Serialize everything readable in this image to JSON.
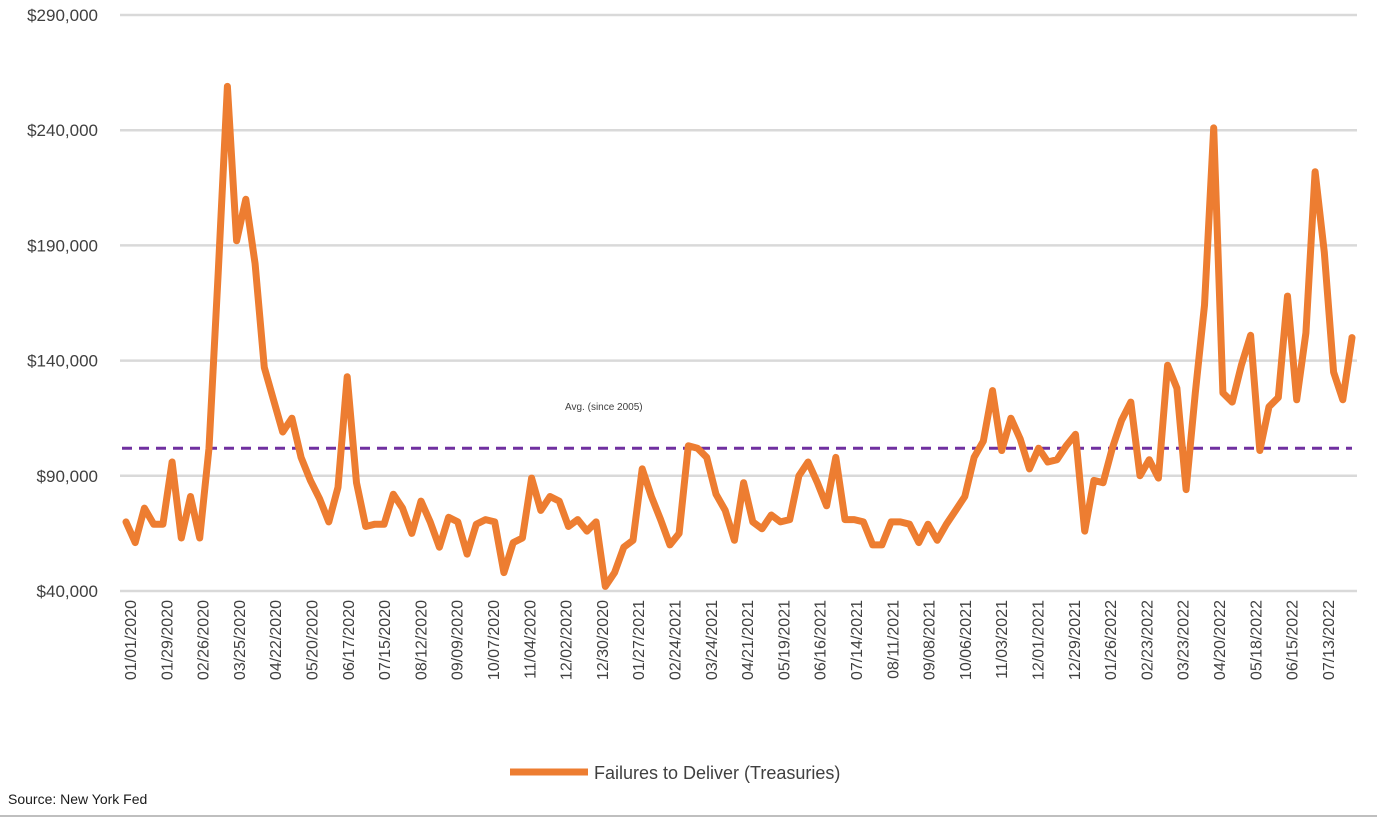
{
  "chart_data": {
    "type": "line",
    "title": "",
    "xlabel": "",
    "ylabel": "",
    "ylim": [
      40000,
      290000
    ],
    "yticks": [
      40000,
      90000,
      140000,
      190000,
      240000,
      290000
    ],
    "ytick_labels": [
      "$40,000",
      "$90,000",
      "$140,000",
      "$190,000",
      "$240,000",
      "$290,000"
    ],
    "grid": "horizontal",
    "legend_position": "bottom",
    "xtick_labels": [
      "01/01/2020",
      "01/29/2020",
      "02/26/2020",
      "03/25/2020",
      "04/22/2020",
      "05/20/2020",
      "06/17/2020",
      "07/15/2020",
      "08/12/2020",
      "09/09/2020",
      "10/07/2020",
      "11/04/2020",
      "12/02/2020",
      "12/30/2020",
      "01/27/2021",
      "02/24/2021",
      "03/24/2021",
      "04/21/2021",
      "05/19/2021",
      "06/16/2021",
      "07/14/2021",
      "08/11/2021",
      "09/08/2021",
      "10/06/2021",
      "11/03/2021",
      "12/01/2021",
      "12/29/2021",
      "01/26/2022",
      "02/23/2022",
      "03/23/2022",
      "04/20/2022",
      "05/18/2022",
      "06/15/2022",
      "07/13/2022"
    ],
    "series": [
      {
        "name": "Failures to Deliver (Treasuries)",
        "color": "#ED7D31",
        "values": [
          70000,
          61000,
          76000,
          69000,
          69000,
          96000,
          63000,
          81000,
          63000,
          102000,
          178000,
          259000,
          192000,
          210000,
          182000,
          137000,
          123000,
          109000,
          115000,
          98000,
          88000,
          80000,
          70000,
          85000,
          133000,
          87000,
          68000,
          69000,
          69000,
          82000,
          76000,
          65000,
          79000,
          70000,
          59000,
          72000,
          70000,
          56000,
          69000,
          71000,
          70000,
          48000,
          61000,
          63000,
          89000,
          75000,
          81000,
          79000,
          68000,
          71000,
          66000,
          70000,
          42000,
          48000,
          59000,
          62000,
          93000,
          81000,
          71000,
          60000,
          65000,
          103000,
          102000,
          98000,
          82000,
          75000,
          62000,
          87000,
          70000,
          67000,
          73000,
          70000,
          71000,
          90000,
          96000,
          87000,
          77000,
          98000,
          71000,
          71000,
          70000,
          60000,
          60000,
          70000,
          70000,
          69000,
          61000,
          69000,
          62000,
          69000,
          75000,
          81000,
          98000,
          105000,
          127000,
          101000,
          115000,
          106000,
          93000,
          102000,
          96000,
          97000,
          103000,
          108000,
          66000,
          88000,
          87000,
          102000,
          114000,
          122000,
          90000,
          97000,
          89000,
          138000,
          128000,
          84000,
          126000,
          164000,
          241000,
          126000,
          122000,
          138000,
          151000,
          101000,
          120000,
          124000,
          168000,
          123000,
          152000,
          222000,
          187000,
          135000,
          123000,
          150000
        ]
      },
      {
        "name": "Avg. (since 2005)",
        "color": "#7030A0",
        "dashed": true,
        "value": 102000
      }
    ],
    "annotations": [
      {
        "text": "Avg. (since 2005)"
      }
    ]
  },
  "footer": {
    "source": "Source: New York Fed"
  }
}
